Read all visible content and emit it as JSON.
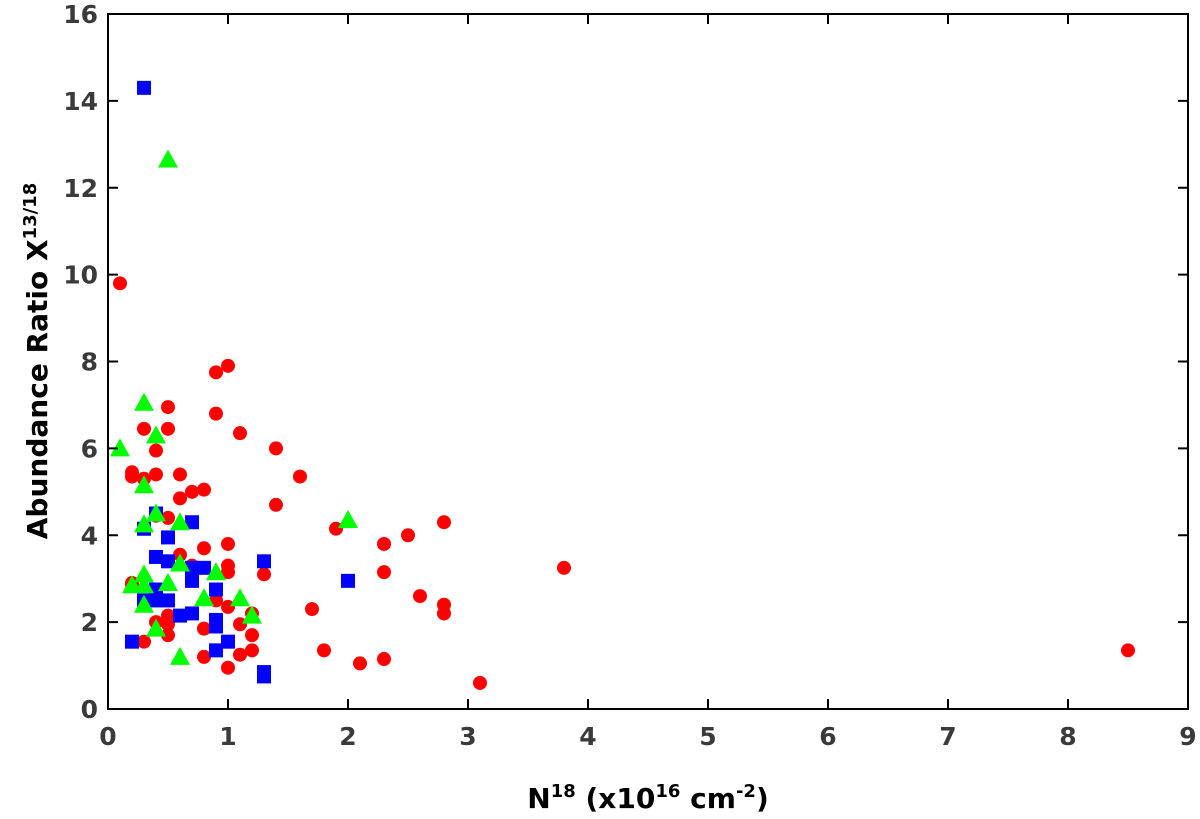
{
  "chart_data": {
    "type": "scatter",
    "title": "",
    "xlabel": {
      "base": "N",
      "sup": "18",
      "rest1": " (x10",
      "sup2": "16",
      "rest2": " cm",
      "sup3": "-2",
      "rest3": ")"
    },
    "ylabel": {
      "base": "Abundance Ratio X",
      "sup": "13/18"
    },
    "xlim": [
      0,
      9
    ],
    "ylim": [
      0,
      16
    ],
    "xticks": [
      "0",
      "1",
      "2",
      "3",
      "4",
      "5",
      "6",
      "7",
      "8",
      "9"
    ],
    "yticks": [
      "0",
      "2",
      "4",
      "6",
      "8",
      "10",
      "12",
      "14",
      "16"
    ],
    "grid": false,
    "legend": "none",
    "series": [
      {
        "marker": "circle",
        "color": "#ff0000",
        "points": [
          [
            0.1,
            9.8
          ],
          [
            0.2,
            5.45
          ],
          [
            0.2,
            5.35
          ],
          [
            0.2,
            2.9
          ],
          [
            0.2,
            2.85
          ],
          [
            0.3,
            6.45
          ],
          [
            0.3,
            5.3
          ],
          [
            0.3,
            1.55
          ],
          [
            0.4,
            5.95
          ],
          [
            0.4,
            5.4
          ],
          [
            0.4,
            4.45
          ],
          [
            0.4,
            2.75
          ],
          [
            0.4,
            2.0
          ],
          [
            0.5,
            6.95
          ],
          [
            0.5,
            6.45
          ],
          [
            0.5,
            4.4
          ],
          [
            0.5,
            2.15
          ],
          [
            0.5,
            1.95
          ],
          [
            0.5,
            1.7
          ],
          [
            0.6,
            5.4
          ],
          [
            0.6,
            4.85
          ],
          [
            0.6,
            3.55
          ],
          [
            0.7,
            5.0
          ],
          [
            0.7,
            3.3
          ],
          [
            0.8,
            5.05
          ],
          [
            0.8,
            3.7
          ],
          [
            0.8,
            1.85
          ],
          [
            0.8,
            1.2
          ],
          [
            0.9,
            7.75
          ],
          [
            0.9,
            6.8
          ],
          [
            0.9,
            2.5
          ],
          [
            1.0,
            7.9
          ],
          [
            1.0,
            3.8
          ],
          [
            1.0,
            3.3
          ],
          [
            1.0,
            3.15
          ],
          [
            1.0,
            2.35
          ],
          [
            1.0,
            0.95
          ],
          [
            1.1,
            6.35
          ],
          [
            1.1,
            1.95
          ],
          [
            1.1,
            1.25
          ],
          [
            1.2,
            2.2
          ],
          [
            1.2,
            1.7
          ],
          [
            1.2,
            1.35
          ],
          [
            1.3,
            3.1
          ],
          [
            1.4,
            6.0
          ],
          [
            1.4,
            4.7
          ],
          [
            1.6,
            5.35
          ],
          [
            1.7,
            2.3
          ],
          [
            1.8,
            1.35
          ],
          [
            1.9,
            4.15
          ],
          [
            2.1,
            1.05
          ],
          [
            2.3,
            3.8
          ],
          [
            2.3,
            3.15
          ],
          [
            2.3,
            1.15
          ],
          [
            2.5,
            4.0
          ],
          [
            2.6,
            2.6
          ],
          [
            2.8,
            4.3
          ],
          [
            2.8,
            2.4
          ],
          [
            2.8,
            2.2
          ],
          [
            3.1,
            0.6
          ],
          [
            3.8,
            3.25
          ],
          [
            8.5,
            1.35
          ]
        ]
      },
      {
        "marker": "square",
        "color": "#0000ff",
        "points": [
          [
            0.2,
            1.55
          ],
          [
            0.3,
            14.3
          ],
          [
            0.3,
            4.15
          ],
          [
            0.3,
            2.5
          ],
          [
            0.4,
            4.5
          ],
          [
            0.4,
            3.5
          ],
          [
            0.4,
            2.75
          ],
          [
            0.4,
            2.5
          ],
          [
            0.5,
            3.95
          ],
          [
            0.5,
            3.4
          ],
          [
            0.5,
            2.5
          ],
          [
            0.6,
            2.15
          ],
          [
            0.7,
            4.3
          ],
          [
            0.7,
            3.25
          ],
          [
            0.7,
            2.95
          ],
          [
            0.7,
            2.2
          ],
          [
            0.8,
            3.25
          ],
          [
            0.9,
            2.75
          ],
          [
            0.9,
            2.05
          ],
          [
            0.9,
            1.9
          ],
          [
            0.9,
            1.35
          ],
          [
            1.0,
            1.55
          ],
          [
            1.3,
            3.4
          ],
          [
            1.3,
            0.85
          ],
          [
            1.3,
            0.75
          ],
          [
            2.0,
            2.95
          ]
        ]
      },
      {
        "marker": "triangle",
        "color": "#00ff00",
        "points": [
          [
            0.1,
            6.0
          ],
          [
            0.2,
            2.85
          ],
          [
            0.3,
            7.05
          ],
          [
            0.3,
            5.15
          ],
          [
            0.3,
            4.25
          ],
          [
            0.3,
            3.1
          ],
          [
            0.3,
            2.85
          ],
          [
            0.3,
            2.4
          ],
          [
            0.4,
            6.3
          ],
          [
            0.4,
            4.5
          ],
          [
            0.4,
            1.85
          ],
          [
            0.5,
            12.65
          ],
          [
            0.5,
            2.9
          ],
          [
            0.6,
            4.3
          ],
          [
            0.6,
            3.35
          ],
          [
            0.6,
            1.2
          ],
          [
            0.8,
            2.55
          ],
          [
            0.9,
            3.15
          ],
          [
            1.1,
            2.55
          ],
          [
            1.2,
            2.15
          ],
          [
            2.0,
            4.35
          ]
        ]
      }
    ]
  }
}
